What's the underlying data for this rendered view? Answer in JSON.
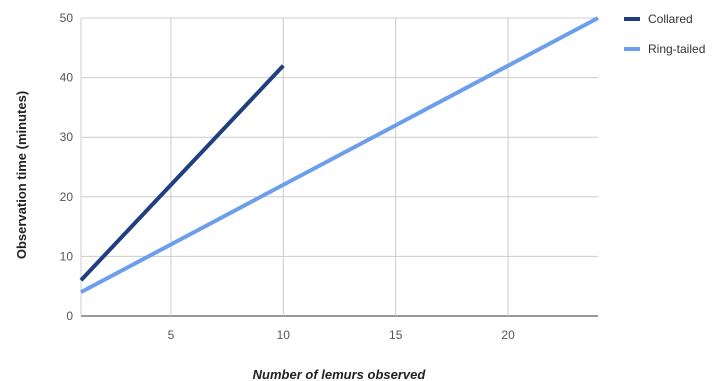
{
  "chart_data": {
    "type": "line",
    "title": "",
    "xlabel": "Number of lemurs observed",
    "ylabel": "Observation time (minutes)",
    "xlim": [
      1,
      24
    ],
    "ylim": [
      0,
      50
    ],
    "x_ticks": [
      5,
      10,
      15,
      20
    ],
    "y_ticks": [
      0,
      10,
      20,
      30,
      40,
      50
    ],
    "grid": true,
    "legend_position": "right",
    "series": [
      {
        "name": "Collared",
        "color": "#1f3f7e",
        "x": [
          1,
          10
        ],
        "y": [
          6,
          42
        ]
      },
      {
        "name": "Ring-tailed",
        "color": "#6d9eeb",
        "x": [
          1,
          24
        ],
        "y": [
          4,
          50
        ]
      }
    ]
  }
}
